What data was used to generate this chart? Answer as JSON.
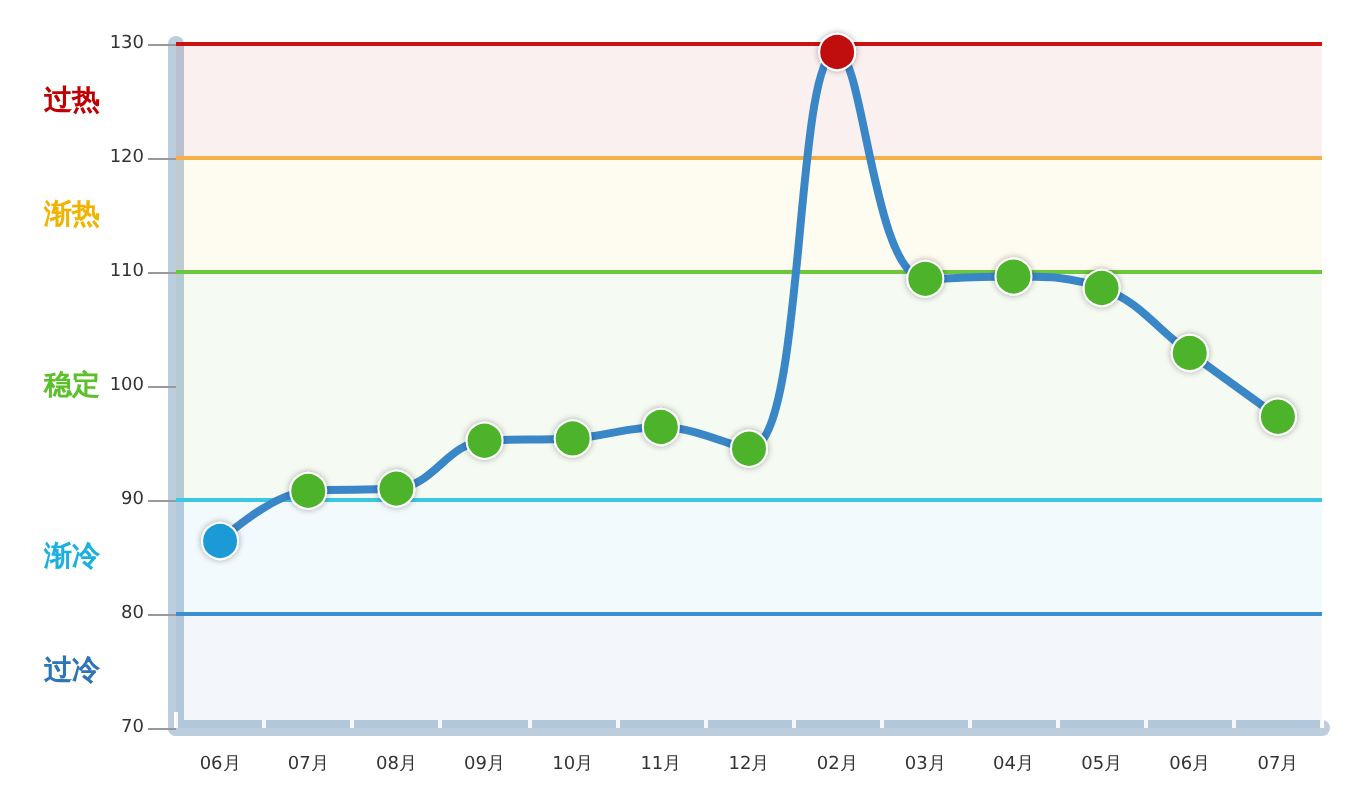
{
  "chart_data": {
    "type": "line",
    "categories": [
      "06月",
      "07月",
      "08月",
      "09月",
      "10月",
      "11月",
      "12月",
      "02月",
      "03月",
      "04月",
      "05月",
      "06月",
      "07月"
    ],
    "series": [
      {
        "color": "#3a87c8",
        "values": [
          86.4,
          90.8,
          91.0,
          95.2,
          95.4,
          96.4,
          94.5,
          129.3,
          109.4,
          109.6,
          108.6,
          102.9,
          97.3
        ],
        "colors": [
          "#1a9ad6",
          "#4db32a",
          "#4db32a",
          "#4db32a",
          "#4db32a",
          "#4db32a",
          "#4db32a",
          "#c01010",
          "#4db32a",
          "#4db32a",
          "#4db32a",
          "#4db32a",
          "#4db32a"
        ]
      }
    ],
    "ylim": [
      70,
      130
    ],
    "yticks": [
      70,
      80,
      90,
      100,
      110,
      120,
      130
    ],
    "ref_lines": [
      {
        "axis": "y",
        "value": 130,
        "color": "#cc1111"
      },
      {
        "axis": "y",
        "value": 120,
        "color": "#f5b04a"
      },
      {
        "axis": "y",
        "value": 110,
        "color": "#6cc83a"
      },
      {
        "axis": "y",
        "value": 90,
        "color": "#3cc8e0"
      },
      {
        "axis": "y",
        "value": 80,
        "color": "#3a8fd0"
      }
    ],
    "bands": [
      {
        "axis": "y",
        "from": 120,
        "to": 130,
        "label": "过热",
        "color": "#c00000"
      },
      {
        "axis": "y",
        "from": 110,
        "to": 120,
        "label": "渐热",
        "color": "#f0b400"
      },
      {
        "axis": "y",
        "from": 90,
        "to": 110,
        "label": "稳定",
        "color": "#5cc02a"
      },
      {
        "axis": "y",
        "from": 80,
        "to": 90,
        "label": "渐冷",
        "color": "#1ab0e0"
      },
      {
        "axis": "y",
        "from": 70,
        "to": 80,
        "label": "过冷",
        "color": "#2e75b6"
      }
    ],
    "grid": false,
    "marker": "circle",
    "line_style": "solid"
  }
}
